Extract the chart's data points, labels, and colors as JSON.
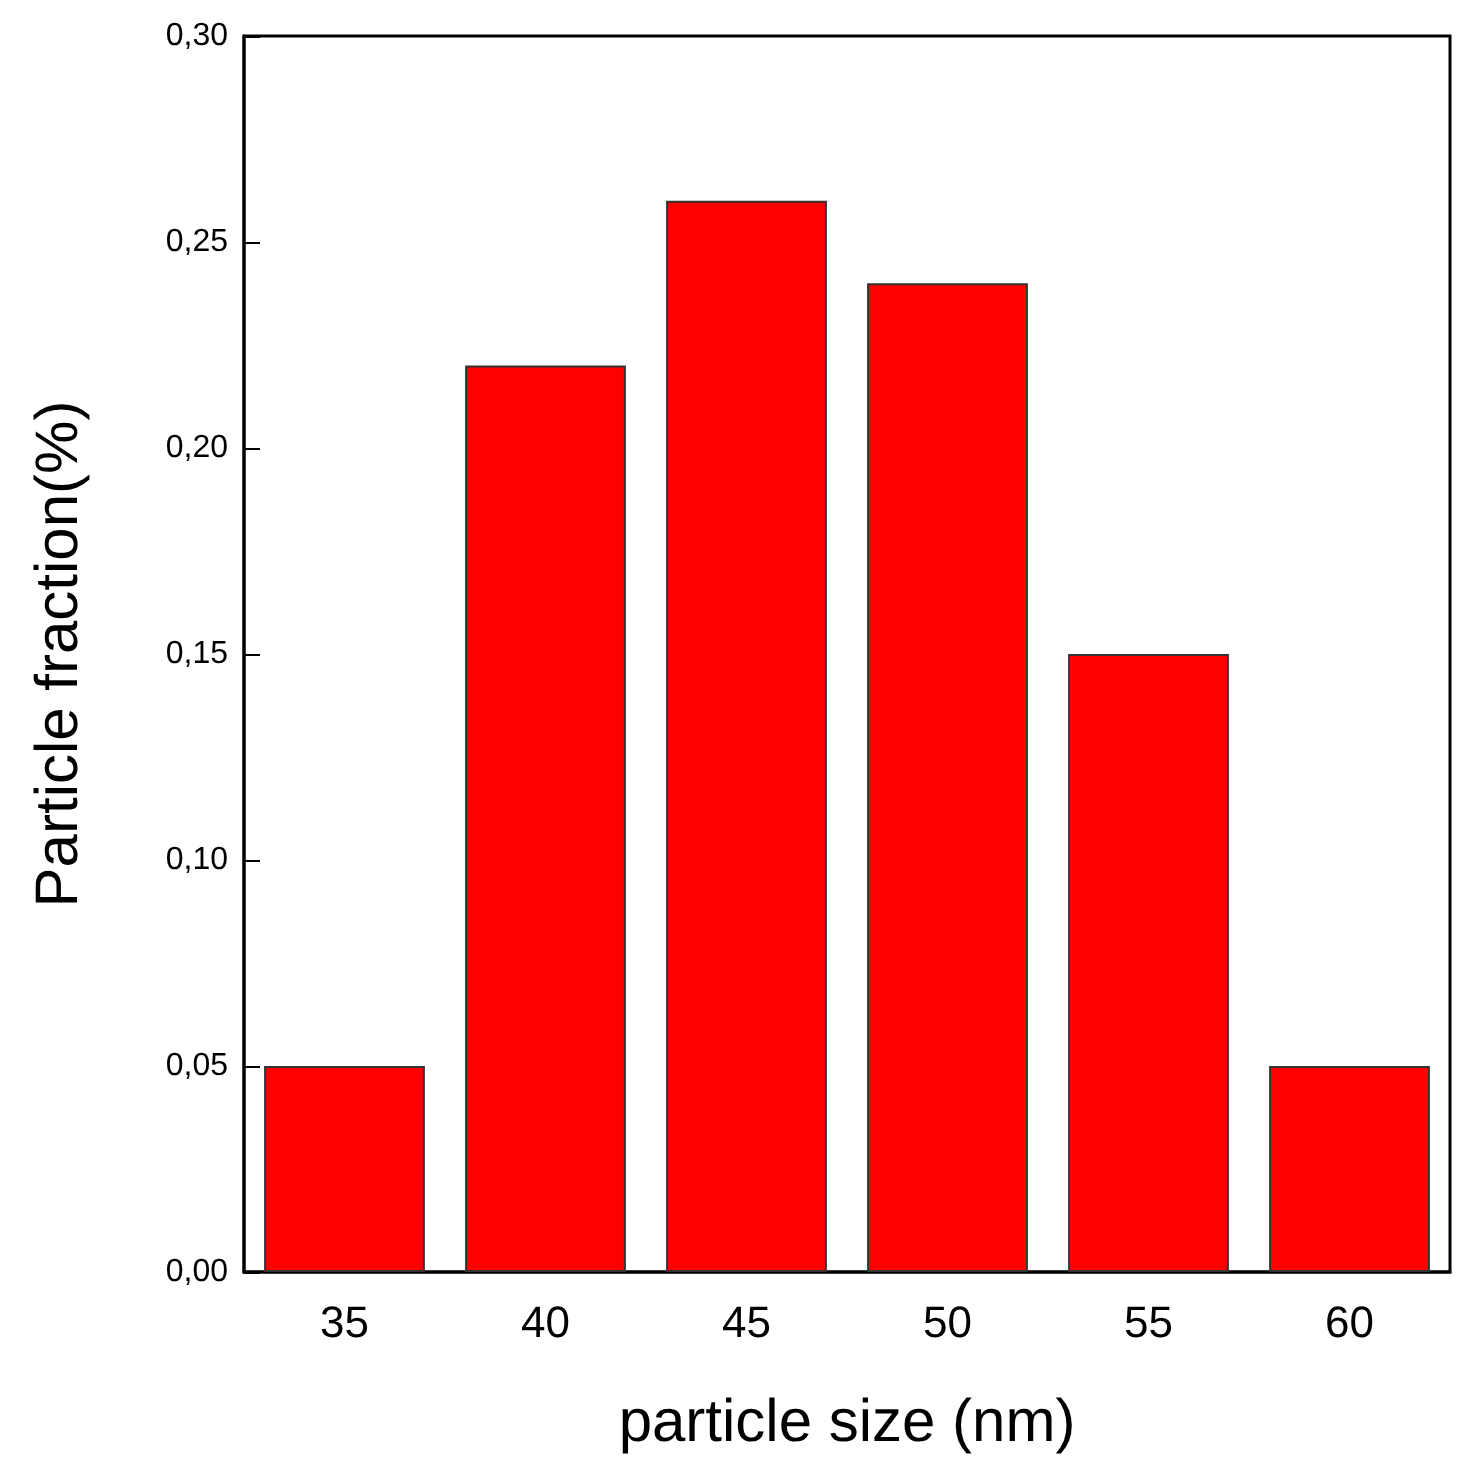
{
  "chart_data": {
    "type": "bar",
    "xlabel": "particle size (nm)",
    "ylabel": "Particle fraction(%)",
    "categories": [
      "35",
      "40",
      "45",
      "50",
      "55",
      "60"
    ],
    "series": [
      {
        "color": "#ff0000",
        "values": [
          0.05,
          0.22,
          0.26,
          0.24,
          0.15,
          0.05
        ]
      }
    ],
    "ylim": [
      0,
      0.3
    ],
    "yticks": [
      {
        "value": 0,
        "label": "0,00"
      },
      {
        "value": 0.05,
        "label": "0,05"
      },
      {
        "value": 0.1,
        "label": "0,10"
      },
      {
        "value": 0.15,
        "label": "0,15"
      },
      {
        "value": 0.2,
        "label": "0,20"
      },
      {
        "value": 0.25,
        "label": "0,25"
      },
      {
        "value": 0.3,
        "label": "0,30"
      }
    ],
    "grid": false
  }
}
